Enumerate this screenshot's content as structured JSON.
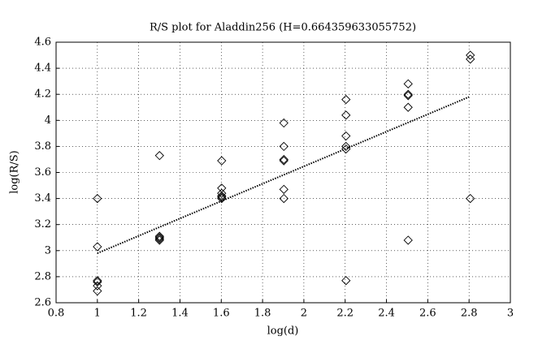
{
  "chart_data": {
    "type": "scatter",
    "title": "R/S plot for Aladdin256 (H=0.664359633055752)",
    "x_label": "log(d)",
    "y_label": "log(R/S)",
    "x": [
      1,
      1,
      1,
      1,
      1,
      1,
      1.301,
      1.301,
      1.301,
      1.301,
      1.301,
      1.602,
      1.602,
      1.602,
      1.602,
      1.602,
      1.602,
      1.903,
      1.903,
      1.903,
      1.903,
      1.903,
      1.903,
      2.204,
      2.204,
      2.204,
      2.204,
      2.204,
      2.204,
      2.505,
      2.505,
      2.505,
      2.505,
      2.505,
      2.806,
      2.806,
      2.806
    ],
    "values": [
      3.4,
      3.03,
      2.77,
      2.76,
      2.73,
      2.69,
      3.73,
      3.11,
      3.1,
      3.09,
      3.08,
      3.69,
      3.48,
      3.44,
      3.42,
      3.41,
      3.4,
      3.98,
      3.8,
      3.7,
      3.69,
      3.47,
      3.4,
      4.16,
      4.04,
      3.88,
      3.8,
      3.78,
      2.77,
      4.28,
      4.2,
      4.19,
      4.1,
      3.08,
      4.5,
      4.47,
      3.4
    ],
    "fit": {
      "x": [
        1,
        2.8
      ],
      "values": [
        2.98,
        4.18
      ]
    },
    "xlim": [
      0.8,
      3
    ],
    "xticks": [
      0.8,
      1,
      1.2,
      1.4,
      1.6,
      1.8,
      2,
      2.2,
      2.4,
      2.6,
      2.8,
      3
    ],
    "ylim": [
      2.6,
      4.6
    ],
    "yticks": [
      2.6,
      2.8,
      3,
      3.2,
      3.4,
      3.6,
      3.8,
      4,
      4.2,
      4.4,
      4.6
    ],
    "grid": true,
    "color": "#000000"
  }
}
